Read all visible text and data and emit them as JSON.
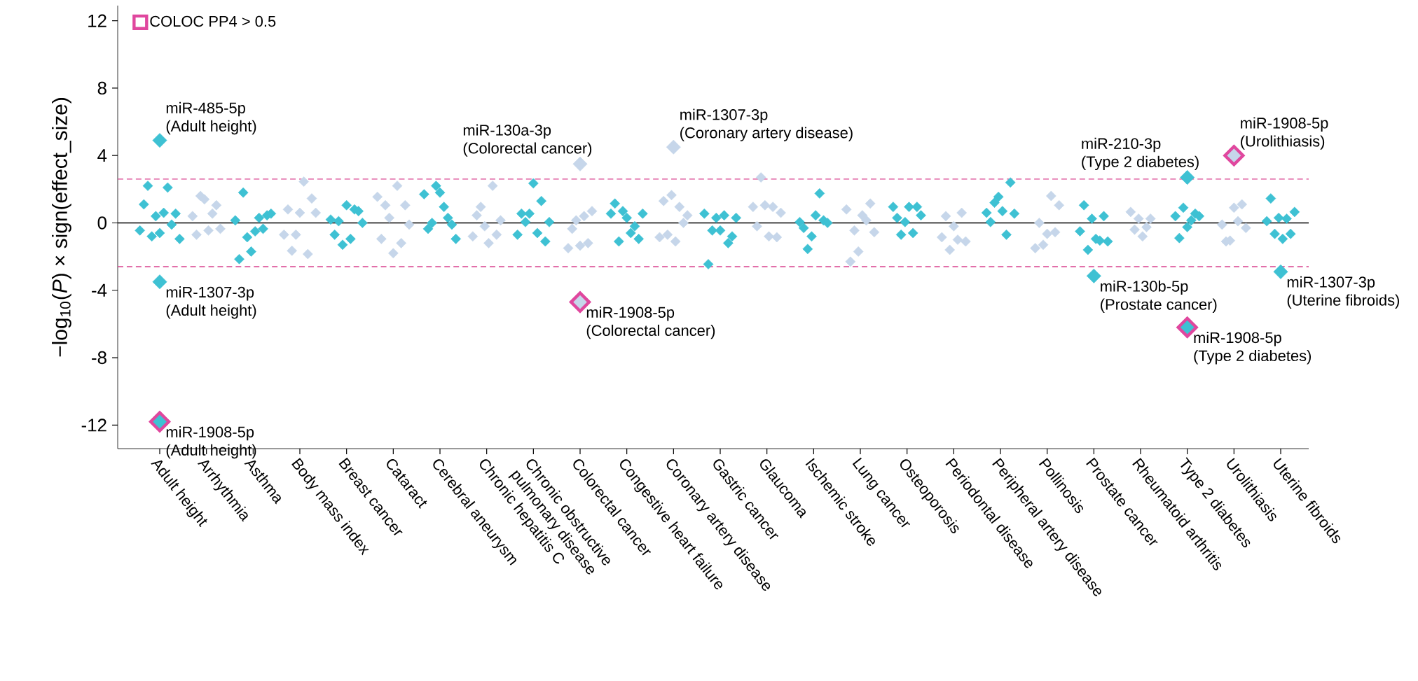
{
  "chart_data": {
    "type": "scatter",
    "ylabel": "−log$_{10}$(*P*) × sign(effect_size)",
    "ylim": [
      -13.4,
      12.9
    ],
    "yticks": [
      12,
      8,
      4,
      0,
      -4,
      -8,
      -12
    ],
    "categories": [
      "Adult height",
      "Arrhythmia",
      "Asthma",
      "Body mass index",
      "Breast cancer",
      "Cataract",
      "Cerebral aneurysm",
      "Chronic hepatitis C",
      "Chronic obstructive pulmonary disease",
      "Colorectal cancer",
      "Congestive heart failure",
      "Coronary artery disease",
      "Gastric cancer",
      "Glaucoma",
      "Ischemic stroke",
      "Lung cancer",
      "Osteoporosis",
      "Periodontal disease",
      "Peripheral artery disease",
      "Pollinosis",
      "Prostate cancer",
      "Rheumatoid arthritis",
      "Type 2 diabetes",
      "Urolithiasis",
      "Uterine fibroids"
    ],
    "marker": "diamond",
    "grid": false,
    "legend": "top left",
    "series": [
      {
        "colors": [
          "#3ec1d3",
          "#c6d6ea",
          "#3ec1d3",
          "#c6d6ea",
          "#3ec1d3",
          "#c6d6ea",
          "#3ec1d3",
          "#c6d6ea",
          "#3ec1d3",
          "#c6d6ea",
          "#3ec1d3",
          "#c6d6ea",
          "#3ec1d3",
          "#c6d6ea",
          "#3ec1d3",
          "#c6d6ea",
          "#3ec1d3",
          "#c6d6ea",
          "#3ec1d3",
          "#c6d6ea",
          "#3ec1d3",
          "#c6d6ea",
          "#3ec1d3",
          "#c6d6ea",
          "#3ec1d3"
        ],
        "values": [
          -0.45,
          0.4,
          0.15,
          -0.7,
          0.2,
          1.55,
          1.7,
          -0.8,
          -0.7,
          -1.5,
          0.55,
          -0.85,
          0.55,
          0.95,
          0.05,
          0.8,
          0.95,
          -0.85,
          0.6,
          -1.5,
          -0.5,
          0.65,
          0.4,
          -0.1,
          0.1
        ]
      },
      {
        "colors": [
          "#3ec1d3",
          "#c6d6ea",
          "#3ec1d3",
          "#c6d6ea",
          "#3ec1d3",
          "#c6d6ea",
          "#3ec1d3",
          "#c6d6ea",
          "#3ec1d3",
          "#c6d6ea",
          "#3ec1d3",
          "#c6d6ea",
          "#3ec1d3",
          "#c6d6ea",
          "#3ec1d3",
          "#c6d6ea",
          "#3ec1d3",
          "#c6d6ea",
          "#3ec1d3",
          "#c6d6ea",
          "#3ec1d3",
          "#c6d6ea",
          "#3ec1d3",
          "#c6d6ea",
          "#3ec1d3"
        ],
        "values": [
          1.1,
          -0.7,
          -2.15,
          0.8,
          -0.7,
          -0.95,
          -0.35,
          0.45,
          0.55,
          -0.35,
          1.15,
          1.3,
          -2.45,
          -0.2,
          -0.3,
          -2.3,
          0.3,
          0.4,
          0.05,
          0.0,
          1.05,
          -0.4,
          -0.9,
          -1.1,
          1.45
        ]
      },
      {
        "colors": [
          "#3ec1d3",
          "#c6d6ea",
          "#3ec1d3",
          "#c6d6ea",
          "#3ec1d3",
          "#c6d6ea",
          "#3ec1d3",
          "#c6d6ea",
          "#3ec1d3",
          "#c6d6ea",
          "#3ec1d3",
          "#c6d6ea",
          "#3ec1d3",
          "#c6d6ea",
          "#3ec1d3",
          "#c6d6ea",
          "#3ec1d3",
          "#c6d6ea",
          "#3ec1d3",
          "#c6d6ea",
          "#3ec1d3",
          "#c6d6ea",
          "#3ec1d3",
          "#c6d6ea",
          "#3ec1d3"
        ],
        "values": [
          2.2,
          1.6,
          1.8,
          -1.65,
          0.1,
          1.05,
          0.0,
          0.95,
          0.05,
          0.15,
          -1.1,
          -0.7,
          -0.45,
          2.7,
          -1.55,
          -0.45,
          -0.7,
          -1.6,
          1.2,
          -1.3,
          -1.6,
          0.25,
          0.9,
          -1.05,
          -0.65
        ]
      },
      {
        "colors": [
          "#3ec1d3",
          "#c6d6ea",
          "#3ec1d3",
          "#c6d6ea",
          "#3ec1d3",
          "#c6d6ea",
          "#3ec1d3",
          "#c6d6ea",
          "#3ec1d3",
          "#c6d6ea",
          "#3ec1d3",
          "#c6d6ea",
          "#3ec1d3",
          "#c6d6ea",
          "#3ec1d3",
          "#c6d6ea",
          "#3ec1d3",
          "#c6d6ea",
          "#3ec1d3",
          "#c6d6ea",
          "#3ec1d3",
          "#c6d6ea",
          "#3ec1d3",
          "#c6d6ea",
          "#3ec1d3"
        ],
        "values": [
          -0.8,
          1.4,
          -0.85,
          -0.7,
          -1.3,
          0.3,
          2.2,
          -0.2,
          0.55,
          -1.35,
          0.7,
          1.65,
          0.3,
          1.05,
          -0.8,
          -1.7,
          0.05,
          -0.2,
          1.55,
          -0.65,
          0.25,
          -0.8,
          -0.25,
          0.9,
          0.3
        ]
      },
      {
        "colors": [
          "#3ec1d3",
          "#c6d6ea",
          "#3ec1d3",
          "#c6d6ea",
          "#3ec1d3",
          "#c6d6ea",
          "#3ec1d3",
          "#c6d6ea",
          "#3ec1d3",
          "#c6d6ea",
          "#3ec1d3",
          "#c6d6ea",
          "#3ec1d3",
          "#c6d6ea",
          "#3ec1d3",
          "#c6d6ea",
          "#3ec1d3",
          "#c6d6ea",
          "#3ec1d3",
          "#c6d6ea",
          "#3ec1d3",
          "#c6d6ea",
          "#3ec1d3",
          "#c6d6ea",
          "#3ec1d3"
        ],
        "values": [
          0.4,
          -0.45,
          -1.7,
          0.6,
          1.05,
          -1.8,
          1.8,
          -1.2,
          2.35,
          0.4,
          0.3,
          -1.1,
          -0.45,
          -0.8,
          0.45,
          0.45,
          0.95,
          -1.0,
          0.7,
          1.6,
          -0.95,
          -0.25,
          0.15,
          0.1,
          -0.95
        ]
      },
      {
        "colors": [
          "#3ec1d3",
          "#c6d6ea",
          "#3ec1d3",
          "#c6d6ea",
          "#3ec1d3",
          "#c6d6ea",
          "#3ec1d3",
          "#c6d6ea",
          "#3ec1d3",
          "#c6d6ea",
          "#3ec1d3",
          "#c6d6ea",
          "#3ec1d3",
          "#c6d6ea",
          "#3ec1d3",
          "#c6d6ea",
          "#3ec1d3",
          "#c6d6ea",
          "#3ec1d3",
          "#c6d6ea",
          "#3ec1d3",
          "#c6d6ea",
          "#3ec1d3",
          "#c6d6ea",
          "#3ec1d3"
        ],
        "values": [
          -0.6,
          0.55,
          -0.5,
          2.45,
          -0.95,
          2.2,
          0.95,
          2.2,
          -0.6,
          -1.2,
          -0.6,
          0.95,
          0.45,
          0.95,
          1.75,
          0.15,
          -0.6,
          0.6,
          -0.7,
          -0.55,
          -1.05,
          0.25,
          0.55,
          1.1,
          0.25
        ]
      },
      {
        "colors": [
          "#3ec1d3",
          "#c6d6ea",
          "#3ec1d3",
          "#c6d6ea",
          "#3ec1d3",
          "#c6d6ea",
          "#3ec1d3",
          "#c6d6ea",
          "#3ec1d3",
          "#c6d6ea",
          "#3ec1d3",
          "#c6d6ea",
          "#3ec1d3",
          "#c6d6ea",
          "#3ec1d3",
          "#c6d6ea",
          "#3ec1d3",
          "#c6d6ea",
          "#3ec1d3",
          "#c6d6ea",
          "#3ec1d3",
          "#c6d6ea",
          "#3ec1d3",
          "#c6d6ea",
          "#3ec1d3"
        ],
        "values": [
          0.6,
          1.05,
          0.3,
          -1.85,
          0.8,
          -1.2,
          0.3,
          -0.7,
          1.3,
          0.7,
          -0.2,
          0.0,
          -1.2,
          -0.85,
          0.15,
          1.15,
          0.95,
          -1.1,
          2.4,
          1.05,
          0.4,
          null,
          0.4,
          -0.3,
          -0.65
        ]
      },
      {
        "colors": [
          "#3ec1d3",
          "#c6d6ea",
          "#3ec1d3",
          "#c6d6ea",
          "#3ec1d3",
          "#c6d6ea",
          "#3ec1d3",
          "#c6d6ea",
          "#3ec1d3",
          "#c6d6ea",
          "#3ec1d3",
          "#c6d6ea",
          "#3ec1d3",
          "#c6d6ea",
          "#3ec1d3",
          "#c6d6ea",
          "#3ec1d3",
          "#c6d6ea",
          "#3ec1d3",
          "#c6d6ea",
          "#3ec1d3",
          "#c6d6ea",
          "#3ec1d3",
          "#c6d6ea",
          "#3ec1d3"
        ],
        "values": [
          2.1,
          -0.35,
          -0.35,
          1.45,
          0.7,
          1.05,
          -0.1,
          0.15,
          -1.1,
          null,
          -0.95,
          0.45,
          -0.8,
          0.6,
          0.0,
          -0.55,
          0.45,
          null,
          0.55,
          null,
          -1.1,
          null,
          null,
          null,
          0.65
        ]
      },
      {
        "colors": [
          "#3ec1d3",
          "#c6d6ea",
          "#3ec1d3",
          "#c6d6ea",
          "#3ec1d3",
          "#c6d6ea",
          "#3ec1d3",
          "#c6d6ea",
          "#3ec1d3",
          "#c6d6ea",
          "#3ec1d3",
          "#c6d6ea",
          "#3ec1d3",
          "#c6d6ea",
          "#3ec1d3",
          "#c6d6ea",
          "#3ec1d3",
          "#c6d6ea",
          "#3ec1d3",
          "#c6d6ea",
          "#3ec1d3",
          "#c6d6ea",
          "#3ec1d3",
          "#c6d6ea",
          "#3ec1d3"
        ],
        "values": [
          -0.1,
          null,
          0.45,
          0.6,
          0.0,
          -0.1,
          -0.95,
          null,
          0.05,
          null,
          0.55,
          null,
          0.3,
          null,
          null,
          null,
          null,
          null,
          null,
          null,
          null,
          null,
          null,
          null,
          null
        ]
      },
      {
        "colors": [
          "#3ec1d3",
          "#c6d6ea",
          "#3ec1d3",
          "#c6d6ea",
          "#3ec1d3",
          "#c6d6ea",
          "#3ec1d3",
          "#c6d6ea",
          "#3ec1d3",
          "#c6d6ea",
          "#3ec1d3",
          "#c6d6ea",
          "#3ec1d3",
          "#c6d6ea",
          "#3ec1d3",
          "#c6d6ea",
          "#3ec1d3",
          "#c6d6ea",
          "#3ec1d3",
          "#c6d6ea",
          "#3ec1d3",
          "#c6d6ea",
          "#3ec1d3",
          "#c6d6ea",
          "#3ec1d3"
        ],
        "values": [
          0.55,
          null,
          0.55,
          null,
          null,
          null,
          null,
          null,
          null,
          null,
          null,
          null,
          null,
          null,
          null,
          null,
          null,
          null,
          null,
          null,
          null,
          null,
          null,
          null,
          null
        ]
      },
      {
        "colors": [
          "#3ec1d3",
          "#c6d6ea",
          "#3ec1d3",
          "#c6d6ea",
          "#3ec1d3",
          "#c6d6ea",
          "#3ec1d3",
          "#c6d6ea",
          "#3ec1d3",
          "#c6d6ea",
          "#3ec1d3",
          "#c6d6ea",
          "#3ec1d3",
          "#c6d6ea",
          "#3ec1d3",
          "#c6d6ea",
          "#3ec1d3",
          "#c6d6ea",
          "#3ec1d3",
          "#c6d6ea",
          "#3ec1d3",
          "#c6d6ea",
          "#3ec1d3",
          "#c6d6ea",
          "#3ec1d3"
        ],
        "values": [
          -0.95,
          null,
          null,
          null,
          null,
          null,
          null,
          null,
          null,
          null,
          null,
          null,
          null,
          null,
          null,
          null,
          null,
          null,
          null,
          null,
          null,
          null,
          null,
          null,
          null
        ]
      },
      {
        "colors": [
          "#3ec1d3",
          "#c6d6ea",
          "#3ec1d3",
          "#c6d6ea",
          "#3ec1d3",
          "#c6d6ea",
          "#3ec1d3",
          "#c6d6ea",
          "#3ec1d3",
          "#c6d6ea",
          "#3ec1d3",
          "#c6d6ea",
          "#3ec1d3",
          "#c6d6ea",
          "#3ec1d3",
          "#c6d6ea",
          "#3ec1d3",
          "#c6d6ea",
          "#3ec1d3",
          "#c6d6ea",
          "#3ec1d3",
          "#c6d6ea",
          "#3ec1d3",
          "#c6d6ea",
          "#3ec1d3"
        ],
        "values": [
          4.9,
          null,
          null,
          null,
          null,
          null,
          null,
          null,
          null,
          3.5,
          null,
          4.5,
          null,
          null,
          null,
          null,
          null,
          null,
          null,
          null,
          -3.15,
          null,
          2.7,
          null,
          -2.9
        ]
      },
      {
        "colors": [
          "#3ec1d3",
          "#c6d6ea",
          "#3ec1d3",
          "#c6d6ea",
          "#3ec1d3",
          "#c6d6ea",
          "#3ec1d3",
          "#c6d6ea",
          "#3ec1d3",
          "#c6d6ea",
          "#3ec1d3",
          "#c6d6ea",
          "#3ec1d3",
          "#c6d6ea",
          "#3ec1d3",
          "#c6d6ea",
          "#3ec1d3",
          "#c6d6ea",
          "#3ec1d3",
          "#c6d6ea",
          "#3ec1d3",
          "#c6d6ea",
          "#3ec1d3",
          "#c6d6ea",
          "#3ec1d3"
        ],
        "values": [
          -3.5,
          null,
          null,
          null,
          null,
          null,
          null,
          null,
          null,
          null,
          null,
          null,
          null,
          null,
          null,
          null,
          null,
          null,
          null,
          null,
          null,
          null,
          null,
          null,
          null
        ]
      },
      {
        "name": "COLOC PP4 > 0.5",
        "color": "#e0479e",
        "colors": [
          "#3ec1d3",
          "#c6d6ea",
          "#3ec1d3",
          "#c6d6ea",
          "#3ec1d3",
          "#c6d6ea",
          "#3ec1d3",
          "#c6d6ea",
          "#3ec1d3",
          "#c6d6ea",
          "#3ec1d3",
          "#c6d6ea",
          "#3ec1d3",
          "#c6d6ea",
          "#3ec1d3",
          "#c6d6ea",
          "#3ec1d3",
          "#c6d6ea",
          "#3ec1d3",
          "#c6d6ea",
          "#3ec1d3",
          "#c6d6ea",
          "#3ec1d3",
          "#c6d6ea",
          "#3ec1d3"
        ],
        "values": [
          -11.8,
          null,
          null,
          null,
          null,
          null,
          null,
          null,
          null,
          -4.7,
          null,
          null,
          null,
          null,
          null,
          null,
          null,
          null,
          null,
          null,
          null,
          null,
          -6.2,
          4.0,
          null
        ]
      }
    ],
    "ref_lines": [
      {
        "axis": "y",
        "value": 0,
        "color": "#000000",
        "line_style": "solid"
      },
      {
        "axis": "y",
        "value": 2.6,
        "color": "#d9428f",
        "line_style": "dashed"
      },
      {
        "axis": "y",
        "value": -2.6,
        "color": "#d9428f",
        "line_style": "dashed"
      }
    ],
    "annotations": [
      {
        "text": "miR-485-5p",
        "x": "Adult height",
        "y": 4.9
      },
      {
        "text": "(Adult height)",
        "x": "Adult height",
        "y": 4.9
      },
      {
        "text": "miR-1307-3p",
        "x": "Adult height",
        "y": -3.5
      },
      {
        "text": "(Adult height)",
        "x": "Adult height",
        "y": -3.5
      },
      {
        "text": "miR-1908-5p",
        "x": "Adult height",
        "y": -11.8
      },
      {
        "text": "(Adult height)",
        "x": "Adult height",
        "y": -11.8
      },
      {
        "text": "miR-130a-3p",
        "x": "Colorectal cancer",
        "y": 3.5
      },
      {
        "text": "(Colorectal cancer)",
        "x": "Colorectal cancer",
        "y": 3.5
      },
      {
        "text": "miR-1307-3p",
        "x": "Coronary artery disease",
        "y": 4.5
      },
      {
        "text": "(Coronary artery disease)",
        "x": "Coronary artery disease",
        "y": 4.5
      },
      {
        "text": "miR-1908-5p",
        "x": "Colorectal cancer",
        "y": -4.7
      },
      {
        "text": "(Colorectal cancer)",
        "x": "Colorectal cancer",
        "y": -4.7
      },
      {
        "text": "miR-210-3p",
        "x": "Type 2 diabetes",
        "y": 2.7
      },
      {
        "text": "(Type 2 diabetes)",
        "x": "Type 2 diabetes",
        "y": 2.7
      },
      {
        "text": "miR-1908-5p",
        "x": "Urolithiasis",
        "y": 4.0
      },
      {
        "text": "(Urolithiasis)",
        "x": "Urolithiasis",
        "y": 4.0
      },
      {
        "text": "miR-130b-5p",
        "x": "Prostate cancer",
        "y": -3.15
      },
      {
        "text": "(Prostate cancer)",
        "x": "Prostate cancer",
        "y": -3.15
      },
      {
        "text": "miR-1908-5p",
        "x": "Type 2 diabetes",
        "y": -6.2
      },
      {
        "text": "(Type 2 diabetes)",
        "x": "Type 2 diabetes",
        "y": -6.2
      },
      {
        "text": "miR-1307-3p",
        "x": "Uterine fibroids",
        "y": -2.9
      },
      {
        "text": "(Uterine fibroids)",
        "x": "Uterine fibroids",
        "y": -2.9
      }
    ]
  }
}
